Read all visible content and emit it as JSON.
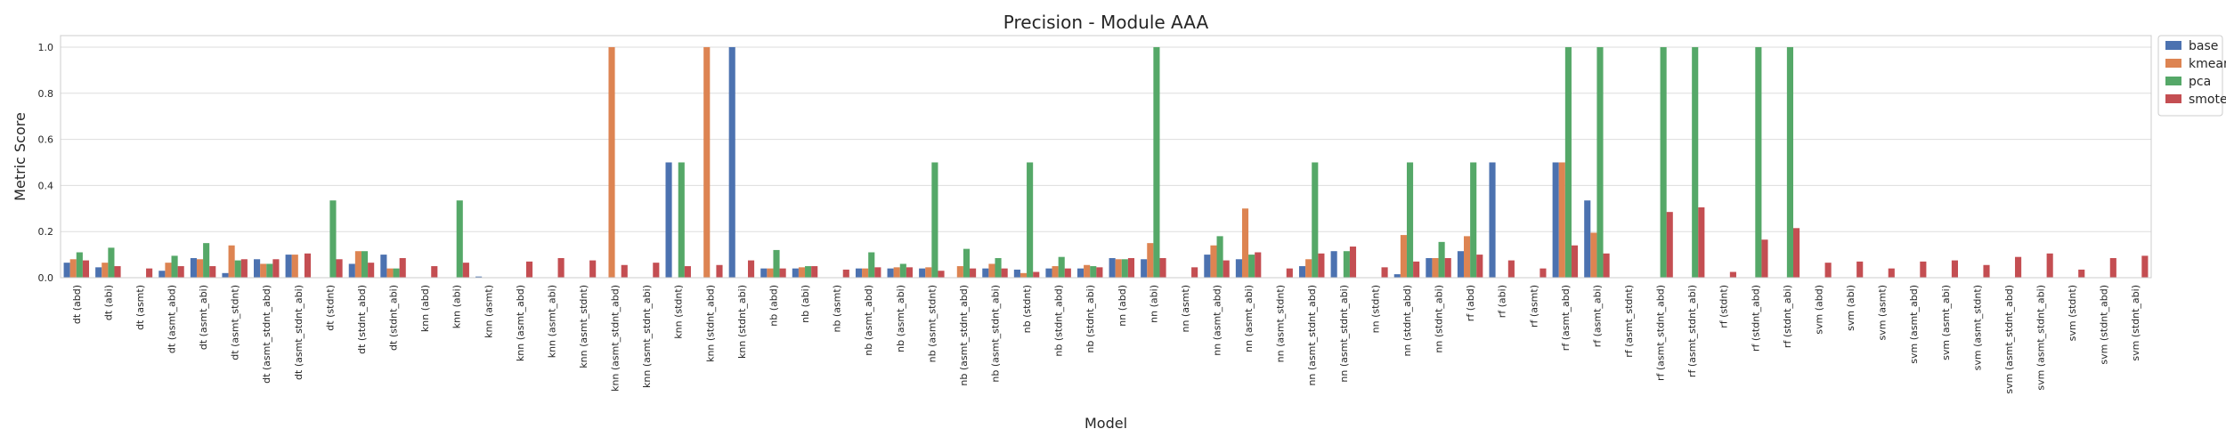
{
  "chart_data": {
    "type": "bar",
    "title": "Precision - Module AAA",
    "xlabel": "Model",
    "ylabel": "Metric Score",
    "ylim": [
      0,
      1.05
    ],
    "yticks": [
      "0.0",
      "0.2",
      "0.4",
      "0.6",
      "0.8",
      "1.0"
    ],
    "grid": "y",
    "legend_position": "outside-top-right",
    "categories": [
      "dt (abd)",
      "dt (abi)",
      "dt (asmt)",
      "dt (asmt_abd)",
      "dt (asmt_abi)",
      "dt (asmt_stdnt)",
      "dt (asmt_stdnt_abd)",
      "dt (asmt_stdnt_abi)",
      "dt (stdnt)",
      "dt (stdnt_abd)",
      "dt (stdnt_abi)",
      "knn (abd)",
      "knn (abi)",
      "knn (asmt)",
      "knn (asmt_abd)",
      "knn (asmt_abi)",
      "knn (asmt_stdnt)",
      "knn (asmt_stdnt_abd)",
      "knn (asmt_stdnt_abi)",
      "knn (stdnt)",
      "knn (stdnt_abd)",
      "knn (stdnt_abi)",
      "nb (abd)",
      "nb (abi)",
      "nb (asmt)",
      "nb (asmt_abd)",
      "nb (asmt_abi)",
      "nb (asmt_stdnt)",
      "nb (asmt_stdnt_abd)",
      "nb (asmt_stdnt_abi)",
      "nb (stdnt)",
      "nb (stdnt_abd)",
      "nb (stdnt_abi)",
      "nn (abd)",
      "nn (abi)",
      "nn (asmt)",
      "nn (asmt_abd)",
      "nn (asmt_abi)",
      "nn (asmt_stdnt)",
      "nn (asmt_stdnt_abd)",
      "nn (asmt_stdnt_abi)",
      "nn (stdnt)",
      "nn (stdnt_abd)",
      "nn (stdnt_abi)",
      "rf (abd)",
      "rf (abi)",
      "rf (asmt)",
      "rf (asmt_abd)",
      "rf (asmt_abi)",
      "rf (asmt_stdnt)",
      "rf (asmt_stdnt_abd)",
      "rf (asmt_stdnt_abi)",
      "rf (stdnt)",
      "rf (stdnt_abd)",
      "rf (stdnt_abi)",
      "svm (abd)",
      "svm (abi)",
      "svm (asmt)",
      "svm (asmt_abd)",
      "svm (asmt_abi)",
      "svm (asmt_stdnt)",
      "svm (asmt_stdnt_abd)",
      "svm (asmt_stdnt_abi)",
      "svm (stdnt)",
      "svm (stdnt_abd)",
      "svm (stdnt_abi)"
    ],
    "series": [
      {
        "name": "base",
        "color": "#4c72b0",
        "values": [
          0.065,
          0.045,
          0.0,
          0.03,
          0.085,
          0.02,
          0.08,
          0.1,
          0.0,
          0.06,
          0.1,
          0.0,
          0.0,
          0.005,
          0.0,
          0.0,
          0.0,
          0.0,
          0.0,
          0.5,
          0.0,
          1.0,
          0.04,
          0.04,
          0.0,
          0.04,
          0.04,
          0.04,
          0.0,
          0.04,
          0.035,
          0.04,
          0.04,
          0.085,
          0.08,
          0.0,
          0.1,
          0.08,
          0.0,
          0.05,
          0.115,
          0.0,
          0.015,
          0.085,
          0.115,
          0.5,
          0.0,
          0.5,
          0.335,
          0.0,
          0.0,
          0.0,
          0.0,
          0.0,
          0.0,
          0.0,
          0.0,
          0.0,
          0.0,
          0.0,
          0.0,
          0.0,
          0.0,
          0.0,
          0.0,
          0.0
        ]
      },
      {
        "name": "kmeans",
        "color": "#dd8452",
        "values": [
          0.08,
          0.065,
          0.0,
          0.065,
          0.08,
          0.14,
          0.06,
          0.1,
          0.0,
          0.115,
          0.04,
          0.0,
          0.0,
          0.0,
          0.0,
          0.0,
          0.0,
          1.0,
          0.0,
          0.0,
          1.0,
          0.0,
          0.04,
          0.045,
          0.0,
          0.04,
          0.045,
          0.045,
          0.05,
          0.06,
          0.02,
          0.05,
          0.055,
          0.08,
          0.15,
          0.0,
          0.14,
          0.3,
          0.0,
          0.08,
          0.0,
          0.0,
          0.185,
          0.085,
          0.18,
          0.0,
          0.0,
          0.5,
          0.195,
          0.0,
          0.0,
          0.0,
          0.0,
          0.0,
          0.0,
          0.0,
          0.0,
          0.0,
          0.0,
          0.0,
          0.0,
          0.0,
          0.0,
          0.0,
          0.0,
          0.0
        ]
      },
      {
        "name": "pca",
        "color": "#55a868",
        "values": [
          0.11,
          0.13,
          0.0,
          0.095,
          0.15,
          0.075,
          0.06,
          0.0,
          0.335,
          0.115,
          0.04,
          0.0,
          0.335,
          0.0,
          0.0,
          0.0,
          0.0,
          0.0,
          0.0,
          0.5,
          0.0,
          0.0,
          0.12,
          0.05,
          0.0,
          0.11,
          0.06,
          0.5,
          0.125,
          0.085,
          0.5,
          0.09,
          0.05,
          0.08,
          1.0,
          0.0,
          0.18,
          0.1,
          0.0,
          0.5,
          0.115,
          0.0,
          0.5,
          0.155,
          0.5,
          0.0,
          0.0,
          1.0,
          1.0,
          0.0,
          1.0,
          1.0,
          0.0,
          1.0,
          1.0,
          0.0,
          0.0,
          0.0,
          0.0,
          0.0,
          0.0,
          0.0,
          0.0,
          0.0,
          0.0,
          0.0
        ]
      },
      {
        "name": "smote",
        "color": "#c44e52",
        "values": [
          0.075,
          0.05,
          0.04,
          0.05,
          0.05,
          0.08,
          0.08,
          0.105,
          0.08,
          0.065,
          0.085,
          0.05,
          0.065,
          0.0,
          0.07,
          0.085,
          0.075,
          0.055,
          0.065,
          0.05,
          0.055,
          0.075,
          0.04,
          0.05,
          0.035,
          0.045,
          0.045,
          0.03,
          0.04,
          0.04,
          0.025,
          0.04,
          0.045,
          0.085,
          0.085,
          0.045,
          0.075,
          0.11,
          0.04,
          0.105,
          0.135,
          0.045,
          0.07,
          0.085,
          0.1,
          0.075,
          0.04,
          0.14,
          0.105,
          0.0,
          0.285,
          0.305,
          0.025,
          0.165,
          0.215,
          0.065,
          0.07,
          0.04,
          0.07,
          0.075,
          0.055,
          0.09,
          0.105,
          0.035,
          0.085,
          0.095
        ]
      }
    ]
  }
}
